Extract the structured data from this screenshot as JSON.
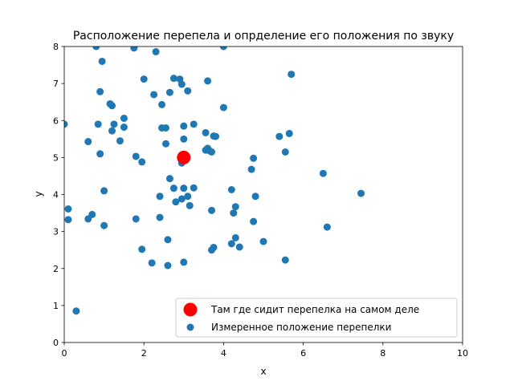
{
  "chart_data": {
    "type": "scatter",
    "title": "Расположение перепела и опрделение его положения по звуку",
    "xlabel": "x",
    "ylabel": "y",
    "xlim": [
      0,
      10
    ],
    "ylim": [
      0,
      8
    ],
    "xticks": [
      "0",
      "2",
      "4",
      "6",
      "8",
      "10"
    ],
    "yticks": [
      "0",
      "1",
      "2",
      "3",
      "4",
      "5",
      "6",
      "7",
      "8"
    ],
    "grid": false,
    "legend_position": "lower-right",
    "series": [
      {
        "name": "Там где сидит перепелка на самом деле",
        "color": "#ff0000",
        "marker": "large-circle",
        "points": [
          [
            3.0,
            5.0
          ]
        ]
      },
      {
        "name": "Измеренное положение перепелки",
        "color": "#1f77b4",
        "marker": "circle",
        "points": [
          [
            0.8,
            8.0
          ],
          [
            1.75,
            7.96
          ],
          [
            2.3,
            7.86
          ],
          [
            4.0,
            8.0
          ],
          [
            0.95,
            7.6
          ],
          [
            5.7,
            7.25
          ],
          [
            2.0,
            7.12
          ],
          [
            2.75,
            7.14
          ],
          [
            2.9,
            7.12
          ],
          [
            2.95,
            6.98
          ],
          [
            3.6,
            7.07
          ],
          [
            0.9,
            6.78
          ],
          [
            2.25,
            6.7
          ],
          [
            2.65,
            6.76
          ],
          [
            3.1,
            6.8
          ],
          [
            1.15,
            6.45
          ],
          [
            1.2,
            6.4
          ],
          [
            2.45,
            6.43
          ],
          [
            4.0,
            6.35
          ],
          [
            0.0,
            5.9
          ],
          [
            0.85,
            5.9
          ],
          [
            1.25,
            5.9
          ],
          [
            1.5,
            6.06
          ],
          [
            1.5,
            5.82
          ],
          [
            1.2,
            5.72
          ],
          [
            2.45,
            5.8
          ],
          [
            2.55,
            5.8
          ],
          [
            3.0,
            5.85
          ],
          [
            3.25,
            5.9
          ],
          [
            3.55,
            5.67
          ],
          [
            3.75,
            5.58
          ],
          [
            3.8,
            5.57
          ],
          [
            5.4,
            5.57
          ],
          [
            5.65,
            5.65
          ],
          [
            0.6,
            5.43
          ],
          [
            1.4,
            5.45
          ],
          [
            2.55,
            5.37
          ],
          [
            3.0,
            5.5
          ],
          [
            0.9,
            5.1
          ],
          [
            1.8,
            5.03
          ],
          [
            1.95,
            4.88
          ],
          [
            3.55,
            5.2
          ],
          [
            3.6,
            5.25
          ],
          [
            3.65,
            5.18
          ],
          [
            3.7,
            5.15
          ],
          [
            4.75,
            4.98
          ],
          [
            5.55,
            5.15
          ],
          [
            2.95,
            4.85
          ],
          [
            6.5,
            4.57
          ],
          [
            4.7,
            4.68
          ],
          [
            2.65,
            4.43
          ],
          [
            2.75,
            4.17
          ],
          [
            3.0,
            4.17
          ],
          [
            3.25,
            4.18
          ],
          [
            1.0,
            4.1
          ],
          [
            4.2,
            4.13
          ],
          [
            7.45,
            4.03
          ],
          [
            2.4,
            3.95
          ],
          [
            2.95,
            3.88
          ],
          [
            3.1,
            3.95
          ],
          [
            4.8,
            3.95
          ],
          [
            2.8,
            3.8
          ],
          [
            3.15,
            3.7
          ],
          [
            4.3,
            3.67
          ],
          [
            4.25,
            3.5
          ],
          [
            3.7,
            3.57
          ],
          [
            0.1,
            3.61
          ],
          [
            0.7,
            3.46
          ],
          [
            0.1,
            3.32
          ],
          [
            0.6,
            3.34
          ],
          [
            1.8,
            3.34
          ],
          [
            2.4,
            3.38
          ],
          [
            4.75,
            3.27
          ],
          [
            1.0,
            3.16
          ],
          [
            6.6,
            3.12
          ],
          [
            2.6,
            2.78
          ],
          [
            4.3,
            2.83
          ],
          [
            5.0,
            2.73
          ],
          [
            1.95,
            2.52
          ],
          [
            3.75,
            2.57
          ],
          [
            3.7,
            2.5
          ],
          [
            4.2,
            2.67
          ],
          [
            4.4,
            2.58
          ],
          [
            2.2,
            2.15
          ],
          [
            2.6,
            2.08
          ],
          [
            3.0,
            2.17
          ],
          [
            5.55,
            2.23
          ],
          [
            0.3,
            0.85
          ]
        ]
      }
    ]
  }
}
